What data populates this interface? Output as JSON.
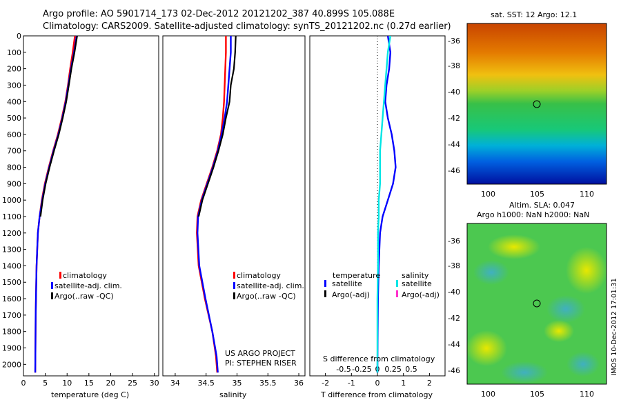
{
  "header": {
    "line1": "Argo profile: AO 5901714_173 02-Dec-2012 20121202_387 40.899S 105.088E",
    "line2": "Climatology: CARS2009. Satellite-adjusted climatology: synTS_20121202.nc (0.27d earlier)"
  },
  "colors": {
    "climatology": "#ff0000",
    "satellite": "#0000ff",
    "argo": "#000000",
    "cyan": "#00e5e5",
    "magenta": "#ff33cc"
  },
  "chart_data": [
    {
      "id": "temperature",
      "type": "line",
      "xlabel": "temperature (deg C)",
      "xlim": [
        0,
        31
      ],
      "ylim": [
        2070,
        0
      ],
      "xticks": [
        0,
        5,
        10,
        15,
        20,
        25,
        30
      ],
      "yticks": [
        0,
        100,
        200,
        300,
        400,
        500,
        600,
        700,
        800,
        900,
        1000,
        1100,
        1200,
        1300,
        1400,
        1500,
        1600,
        1700,
        1800,
        1900,
        2000
      ],
      "legend": [
        "climatology",
        "satellite-adj. clim.",
        "Argo(..raw -QC)"
      ],
      "series": [
        {
          "name": "climatology",
          "color": "#ff0000",
          "x": [
            11.8,
            11.3,
            10.7,
            10.2,
            9.6,
            8.8,
            7.9,
            6.8,
            5.8,
            4.9,
            4.2,
            3.7,
            3.3,
            3.0,
            2.8,
            2.7
          ],
          "y": [
            0,
            100,
            200,
            300,
            400,
            500,
            600,
            700,
            800,
            900,
            1000,
            1100,
            1200,
            1400,
            1700,
            2050
          ]
        },
        {
          "name": "satellite-adj. clim.",
          "color": "#0000ff",
          "x": [
            12.2,
            11.6,
            10.9,
            10.3,
            9.7,
            8.9,
            8.0,
            6.9,
            5.9,
            5.0,
            4.3,
            3.7,
            3.3,
            3.0,
            2.8,
            2.7
          ],
          "y": [
            0,
            100,
            200,
            300,
            400,
            500,
            600,
            700,
            800,
            900,
            1000,
            1100,
            1200,
            1400,
            1700,
            2050
          ]
        },
        {
          "name": "Argo",
          "color": "#000000",
          "x": [
            12.3,
            11.7,
            11.0,
            10.4,
            9.8,
            9.0,
            8.1,
            7.0,
            6.0,
            5.1,
            4.4,
            3.9
          ],
          "y": [
            0,
            100,
            200,
            300,
            400,
            500,
            600,
            700,
            800,
            900,
            1000,
            1100
          ]
        }
      ]
    },
    {
      "id": "salinity",
      "type": "line",
      "xlabel": "salinity",
      "xlim": [
        33.8,
        36.1
      ],
      "ylim": [
        2070,
        0
      ],
      "xticks": [
        34,
        34.5,
        35,
        35.5,
        36
      ],
      "legend": [
        "climatology",
        "satellite-adj. clim.",
        "Argo(..raw -QC)"
      ],
      "series": [
        {
          "name": "climatology",
          "color": "#ff0000",
          "x": [
            34.82,
            34.82,
            34.81,
            34.8,
            34.79,
            34.77,
            34.74,
            34.68,
            34.6,
            34.51,
            34.42,
            34.36,
            34.35,
            34.38,
            34.48,
            34.6,
            34.66,
            34.68
          ],
          "y": [
            0,
            100,
            200,
            300,
            400,
            500,
            600,
            700,
            800,
            900,
            1000,
            1100,
            1200,
            1400,
            1600,
            1800,
            1950,
            2050
          ]
        },
        {
          "name": "satellite-adj. clim.",
          "color": "#0000ff",
          "x": [
            34.9,
            34.9,
            34.88,
            34.86,
            34.84,
            34.8,
            34.75,
            34.69,
            34.61,
            34.52,
            34.43,
            34.37,
            34.36,
            34.39,
            34.49,
            34.6,
            34.67,
            34.69
          ],
          "y": [
            0,
            100,
            200,
            300,
            400,
            500,
            600,
            700,
            800,
            900,
            1000,
            1100,
            1200,
            1400,
            1600,
            1800,
            1950,
            2050
          ]
        },
        {
          "name": "Argo",
          "color": "#000000",
          "x": [
            34.98,
            34.97,
            34.95,
            34.9,
            34.88,
            34.82,
            34.77,
            34.7,
            34.62,
            34.53,
            34.44,
            34.38
          ],
          "y": [
            0,
            100,
            200,
            300,
            400,
            500,
            600,
            700,
            800,
            900,
            1000,
            1100
          ]
        }
      ]
    },
    {
      "id": "difference",
      "type": "line",
      "xlabel": "T difference from climatology",
      "xlabel_top": "S difference from climatology",
      "xlim": [
        -2.6,
        2.6
      ],
      "ylim": [
        2070,
        0
      ],
      "xticks": [
        -2,
        -1,
        0,
        1,
        2
      ],
      "xticks_top": [
        "-0.5",
        "-0.25",
        "0",
        "0.25",
        "0.5"
      ],
      "legend_left_title": "temperature",
      "legend_right_title": "salinity",
      "legend_left": [
        "satellite",
        "Argo(-adj)"
      ],
      "legend_right": [
        "satellite",
        "Argo(-adj)"
      ],
      "series": [
        {
          "name": "T satellite",
          "color": "#0000ff",
          "x": [
            0.4,
            0.5,
            0.45,
            0.35,
            0.3,
            0.4,
            0.55,
            0.65,
            0.7,
            0.6,
            0.4,
            0.2,
            0.1,
            0.05,
            0.02,
            0.01,
            0.0
          ],
          "y": [
            0,
            100,
            200,
            300,
            400,
            500,
            600,
            700,
            800,
            900,
            1000,
            1100,
            1200,
            1400,
            1600,
            1800,
            2050
          ]
        },
        {
          "name": "S satellite",
          "color": "#00e5e5",
          "x": [
            0.5,
            0.4,
            0.35,
            0.3,
            0.25,
            0.2,
            0.15,
            0.1,
            0.1,
            0.1,
            0.05,
            0.05,
            0.02,
            0.02,
            0.0,
            0.0,
            0.0
          ],
          "y": [
            0,
            100,
            200,
            300,
            400,
            500,
            600,
            700,
            800,
            900,
            1000,
            1100,
            1200,
            1400,
            1600,
            1800,
            2050
          ]
        }
      ]
    }
  ],
  "annotations": {
    "project": "US ARGO PROJECT",
    "pi": "PI: STEPHEN RISER"
  },
  "maps": {
    "sst": {
      "title": "sat. SST: 12 Argo: 12.1",
      "yticks": [
        "-36",
        "-38",
        "-40",
        "-42",
        "-44",
        "-46"
      ],
      "xticks": [
        "100",
        "105",
        "110"
      ]
    },
    "sla": {
      "title1": "Altim. SLA: 0.047",
      "title2": "Argo h1000: NaN h2000: NaN",
      "yticks": [
        "-36",
        "-38",
        "-40",
        "-42",
        "-44",
        "-46"
      ],
      "xticks": [
        "100",
        "105",
        "110"
      ]
    }
  },
  "stamp": "IMOS 10-Dec-2012 17:01:31"
}
